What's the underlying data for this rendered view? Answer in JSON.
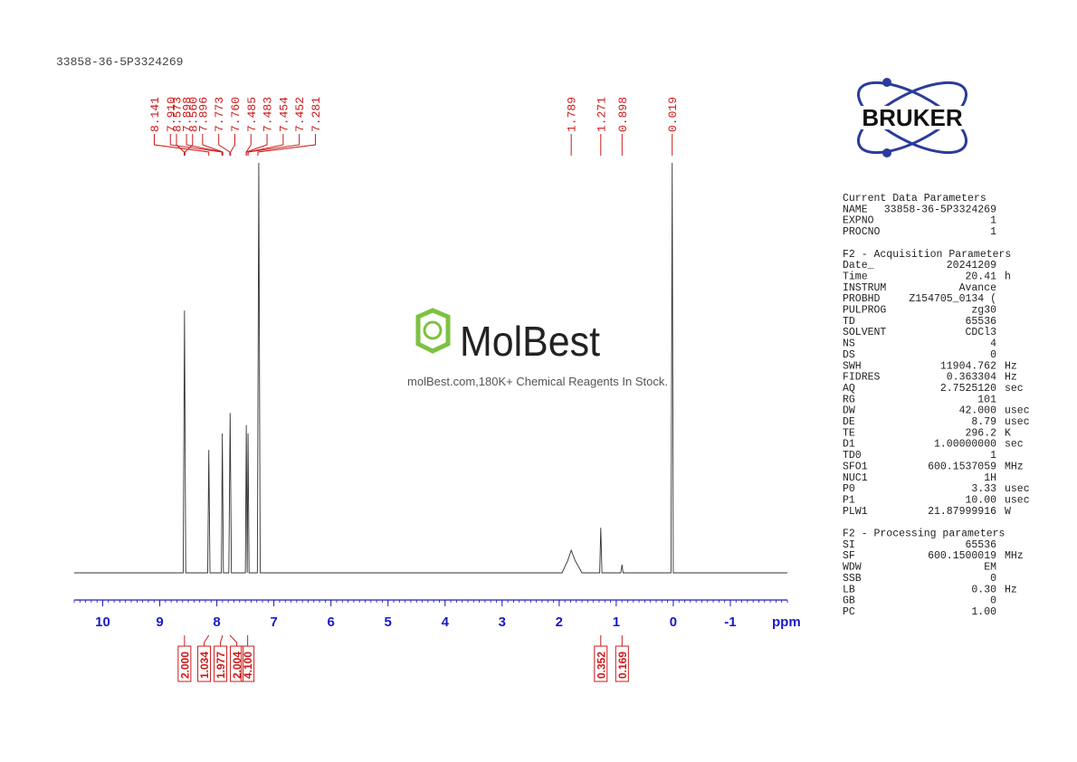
{
  "chart_data": {
    "type": "nmr",
    "title": "33858-36-5P3324269",
    "xlabel": "ppm",
    "xlim": [
      10.5,
      -2
    ],
    "xticks": [
      10,
      9,
      8,
      7,
      6,
      5,
      4,
      3,
      2,
      1,
      0,
      -1
    ],
    "minor_tick_step": 0.1,
    "ylim": [
      0,
      100
    ],
    "axis_color": "#1a1ac8",
    "label_color": "#cc1a1a",
    "trace": {
      "color": "#333333",
      "x": [
        10.5,
        8.59,
        8.567,
        8.545,
        8.16,
        8.141,
        8.12,
        7.92,
        7.904,
        7.885,
        7.79,
        7.767,
        7.745,
        7.5,
        7.484,
        7.468,
        7.453,
        7.435,
        7.29,
        7.265,
        7.24,
        1.95,
        1.85,
        1.789,
        1.72,
        1.6,
        1.29,
        1.271,
        1.25,
        0.92,
        0.898,
        0.88,
        0.04,
        0.019,
        0.0,
        -2
      ],
      "y": [
        0,
        0,
        64,
        0,
        0,
        30,
        0,
        0,
        34,
        0,
        0,
        39,
        0,
        0,
        36,
        0,
        34,
        0,
        0,
        100,
        0,
        0,
        3,
        5.5,
        3,
        0,
        0,
        11,
        0,
        0,
        2,
        0,
        0,
        100,
        0,
        0
      ]
    },
    "peak_labels": {
      "values": [
        8.573,
        8.56,
        8.141,
        7.91,
        7.898,
        7.896,
        7.773,
        7.76,
        7.485,
        7.483,
        7.454,
        7.452,
        7.281,
        1.789,
        1.271,
        0.898,
        0.019
      ],
      "value_labels": [
        "8.573",
        "8.560",
        "8.141",
        "7.910",
        "7.898",
        "7.896",
        "7.773",
        "7.760",
        "7.485",
        "7.483",
        "7.454",
        "7.452",
        "7.281",
        "1.789",
        "1.271",
        "0.898",
        "0.019"
      ]
    },
    "integrals": {
      "x": [
        8.567,
        8.141,
        7.9,
        7.77,
        7.46,
        1.271,
        0.898
      ],
      "values": [
        2.0,
        1.034,
        1.977,
        2.004,
        4.1,
        0.352,
        0.169
      ],
      "value_labels": [
        "2.000",
        "1.034",
        "1.977",
        "2.004",
        "4.100",
        "0.352",
        "0.169"
      ]
    }
  },
  "watermark": {
    "brand": "MolBest",
    "tagline": "molBest.com,180K+ Chemical Reagents In Stock."
  },
  "logo": {
    "text": "BRUKER"
  },
  "parameters": [
    {
      "heading": "Current Data Parameters",
      "rows": [
        [
          "NAME",
          "33858-36-5P3324269"
        ],
        [
          "EXPNO",
          "1"
        ],
        [
          "PROCNO",
          "1"
        ]
      ]
    },
    {
      "heading": "F2 - Acquisition Parameters",
      "rows": [
        [
          "Date_",
          "20241209"
        ],
        [
          "Time",
          "20.41",
          "h"
        ],
        [
          "INSTRUM",
          "Avance"
        ],
        [
          "PROBHD",
          "Z154705_0134 ("
        ],
        [
          "PULPROG",
          "zg30"
        ],
        [
          "TD",
          "65536"
        ],
        [
          "SOLVENT",
          "CDCl3"
        ],
        [
          "NS",
          "4"
        ],
        [
          "DS",
          "0"
        ],
        [
          "SWH",
          "11904.762",
          "Hz"
        ],
        [
          "FIDRES",
          "0.363304",
          "Hz"
        ],
        [
          "AQ",
          "2.7525120",
          "sec"
        ],
        [
          "RG",
          "101"
        ],
        [
          "DW",
          "42.000",
          "usec"
        ],
        [
          "DE",
          "8.79",
          "usec"
        ],
        [
          "TE",
          "296.2",
          "K"
        ],
        [
          "D1",
          "1.00000000",
          "sec"
        ],
        [
          "TD0",
          "1"
        ],
        [
          "SFO1",
          "600.1537059",
          "MHz"
        ],
        [
          "NUC1",
          "1H"
        ],
        [
          "P0",
          "3.33",
          "usec"
        ],
        [
          "P1",
          "10.00",
          "usec"
        ],
        [
          "PLW1",
          "21.87999916",
          "W"
        ]
      ]
    },
    {
      "heading": "F2 - Processing parameters",
      "rows": [
        [
          "SI",
          "65536"
        ],
        [
          "SF",
          "600.1500019",
          "MHz"
        ],
        [
          "WDW",
          "EM"
        ],
        [
          "SSB",
          "0"
        ],
        [
          "LB",
          "0.30",
          "Hz"
        ],
        [
          "GB",
          "0"
        ],
        [
          "PC",
          "1.00"
        ]
      ]
    }
  ]
}
